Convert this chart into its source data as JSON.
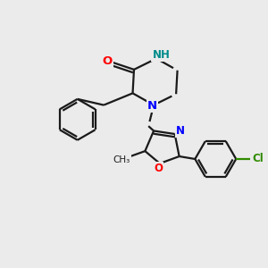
{
  "bg_color": "#EBEBEB",
  "bond_color": "#1A1A1A",
  "bond_width": 1.6,
  "N_color": "#0000FF",
  "O_color": "#FF0000",
  "Cl_color": "#2E8B00",
  "H_color": "#008B8B",
  "figsize": [
    3.0,
    3.0
  ],
  "dpi": 100,
  "xlim": [
    0,
    10
  ],
  "ylim": [
    0,
    10
  ]
}
